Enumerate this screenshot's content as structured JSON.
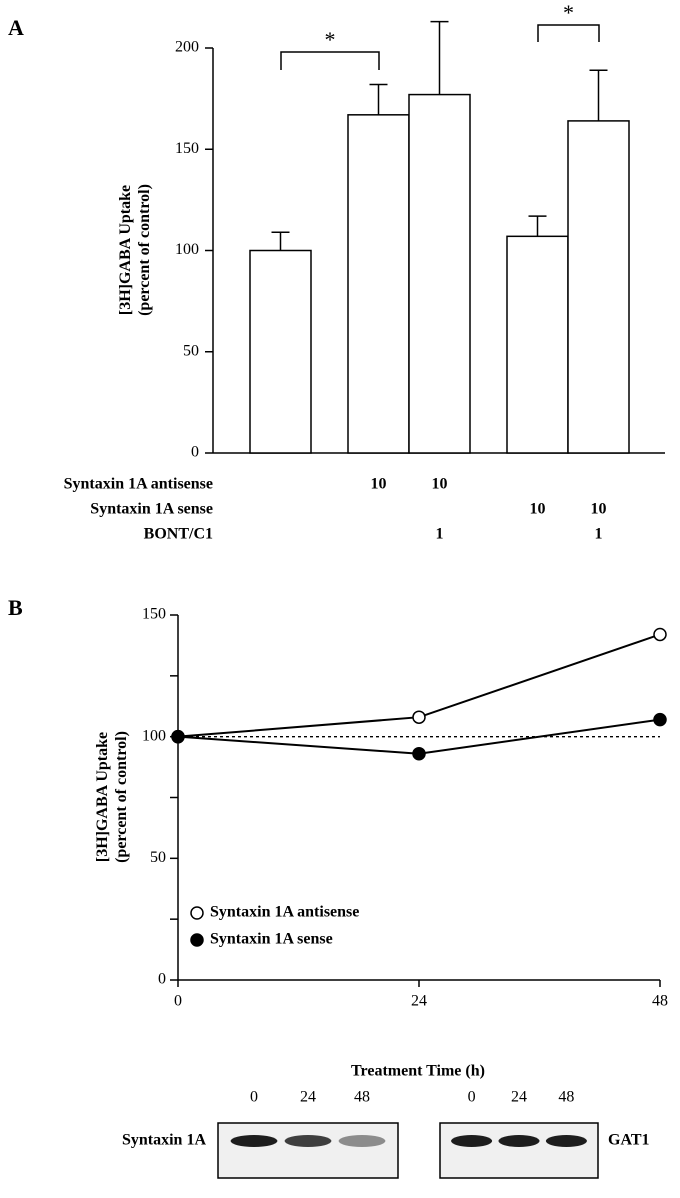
{
  "chart_data": [
    {
      "type": "bar",
      "panel_label": "A",
      "ylabel": [
        "[3H]GABA Uptake",
        "(percent of control)"
      ],
      "categories": [
        null,
        null,
        null,
        null,
        null
      ],
      "values": [
        100,
        167,
        177,
        107,
        164
      ],
      "errors": [
        9,
        15,
        36,
        10,
        25
      ],
      "color": "#ffffff",
      "ylim": [
        0,
        200
      ],
      "yticks": [
        0,
        50,
        100,
        150,
        200
      ],
      "annotations": [
        "*",
        "*"
      ],
      "treatments": [
        {
          "name": "Syntaxin 1A antisense",
          "values": [
            null,
            10,
            10,
            null,
            null
          ]
        },
        {
          "name": "Syntaxin 1A sense",
          "values": [
            null,
            null,
            null,
            10,
            10
          ]
        },
        {
          "name": "BONT/C1",
          "values": [
            null,
            null,
            1,
            null,
            1
          ]
        }
      ]
    },
    {
      "type": "line",
      "panel_label": "B",
      "ylabel": [
        "[3H]GABA Uptake",
        "(percent of control)"
      ],
      "xlabel": "Treatment Time (h)",
      "x": [
        0,
        24,
        48
      ],
      "series": [
        {
          "name": "Syntaxin 1A antisense",
          "color": "#000000",
          "marker_fill": "#ffffff",
          "values": [
            100,
            108,
            142
          ]
        },
        {
          "name": "Syntaxin 1A sense",
          "color": "#000000",
          "marker_fill": "#000000",
          "values": [
            100,
            93,
            107
          ]
        }
      ],
      "reference_line": 100,
      "xlim": [
        0,
        48
      ],
      "xticks": [
        0,
        24,
        48
      ],
      "ylim": [
        0,
        150
      ],
      "yticks": [
        0,
        50,
        100,
        150
      ],
      "yminor_ticks": [
        25,
        75,
        125
      ],
      "legend": "lower-left"
    }
  ],
  "blots": [
    {
      "label": "Syntaxin 1A",
      "lanes": [
        0,
        24,
        48
      ]
    },
    {
      "label": "GAT1",
      "lanes": [
        0,
        24,
        48
      ]
    }
  ]
}
